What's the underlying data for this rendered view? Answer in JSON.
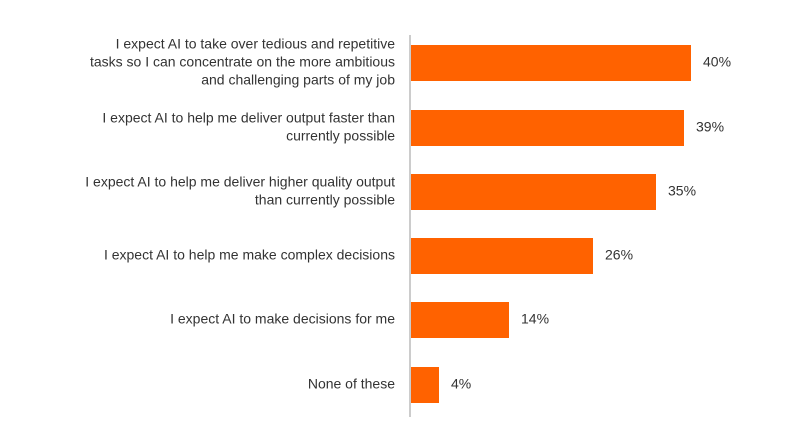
{
  "chart_data": {
    "type": "bar",
    "orientation": "horizontal",
    "title": "",
    "xlabel": "",
    "ylabel": "",
    "xlim": [
      0,
      40
    ],
    "grid": false,
    "legend": "none",
    "bar_color": "#ff6200",
    "axis_color": "#999999",
    "categories": [
      "I expect AI to take over tedious and repetitive tasks so I can concentrate on the more ambitious and challenging parts of my job",
      "I expect AI to help me deliver output faster than currently possible",
      "I expect AI to help me deliver higher quality output than currently possible",
      "I expect AI to help me make complex decisions",
      "I expect AI to make decisions for me",
      "None of these"
    ],
    "category_lines": [
      [
        "I expect AI to take over tedious and repetitive",
        "tasks so I can concentrate on the more ambitious",
        "and challenging parts of my job"
      ],
      [
        "I expect AI to help me deliver output faster than",
        "currently possible"
      ],
      [
        "I expect AI to help me deliver higher quality output",
        "than currently possible"
      ],
      [
        "I expect AI to help me make complex decisions"
      ],
      [
        "I expect AI to make decisions for me"
      ],
      [
        "None of these"
      ]
    ],
    "values": [
      40,
      39,
      35,
      26,
      14,
      4
    ],
    "value_labels": [
      "40%",
      "39%",
      "35%",
      "26%",
      "14%",
      "4%"
    ]
  }
}
